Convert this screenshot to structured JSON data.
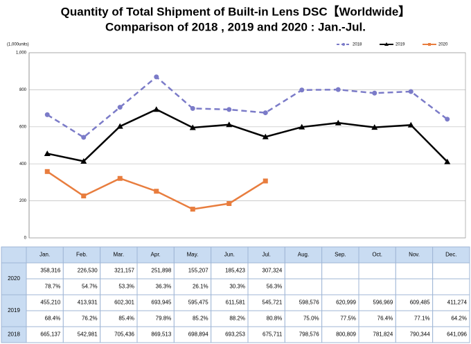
{
  "chart_data": {
    "type": "line",
    "title": "Quantity of Total Shipment of Built-in Lens DSC【Worldwide】",
    "subtitle": "Comparison of 2018 , 2019 and 2020 : Jan.-Jul.",
    "y_unit_label": "(1,000units)",
    "categories": [
      "Jan.",
      "Feb.",
      "Mar.",
      "Apr.",
      "May.",
      "Jun.",
      "Jul.",
      "Aug.",
      "Sep.",
      "Oct.",
      "Nov.",
      "Dec."
    ],
    "ylim": [
      0,
      1000
    ],
    "yticks": [
      0,
      200,
      400,
      600,
      800,
      {
        "value": 1000,
        "label": "1,000"
      }
    ],
    "grid": true,
    "legend": "top-right",
    "series": [
      {
        "name": "2018",
        "color": "#7b7bc8",
        "dash": true,
        "marker": "circle",
        "values": [
          665.137,
          542.981,
          705.436,
          869.513,
          698.894,
          693.253,
          675.711,
          798.576,
          800.809,
          781.824,
          790.344,
          641.096
        ],
        "value_labels": [
          "665,137",
          "542,981",
          "705,436",
          "869,513",
          "698,894",
          "693,253",
          "675,711",
          "798,576",
          "800,809",
          "781,824",
          "790,344",
          "641,096"
        ]
      },
      {
        "name": "2019",
        "color": "#000000",
        "dash": false,
        "marker": "triangle",
        "values": [
          455.21,
          413.931,
          602.301,
          693.945,
          595.475,
          611.581,
          545.721,
          598.576,
          620.999,
          596.969,
          609.485,
          411.274
        ],
        "value_labels": [
          "455,210",
          "413,931",
          "602,301",
          "693,945",
          "595,475",
          "611,581",
          "545,721",
          "598,576",
          "620,999",
          "596,969",
          "609,485",
          "411,274"
        ],
        "ratio_labels": [
          "68.4%",
          "76.2%",
          "85.4%",
          "79.8%",
          "85.2%",
          "88.2%",
          "80.8%",
          "75.0%",
          "77.5%",
          "76.4%",
          "77.1%",
          "64.2%"
        ]
      },
      {
        "name": "2020",
        "color": "#e87d3e",
        "dash": false,
        "marker": "square",
        "values": [
          358.316,
          226.53,
          321.157,
          251.898,
          155.207,
          185.423,
          307.324,
          null,
          null,
          null,
          null,
          null
        ],
        "value_labels": [
          "358,316",
          "226,530",
          "321,157",
          "251,898",
          "155,207",
          "185,423",
          "307,324",
          null,
          null,
          null,
          null,
          null
        ],
        "ratio_labels": [
          "78.7%",
          "54.7%",
          "53.3%",
          "36.3%",
          "26.1%",
          "30.3%",
          "56.3%",
          null,
          null,
          null,
          null,
          null
        ]
      }
    ]
  }
}
